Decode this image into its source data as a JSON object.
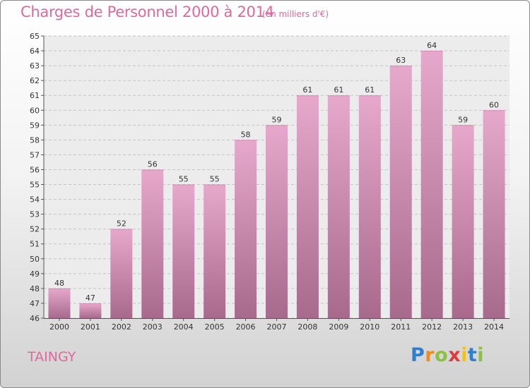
{
  "header": {
    "title": "Charges de Personnel 2000 à 2014",
    "subtitle": "(en milliers d'€)"
  },
  "commune": "TAINGY",
  "logo": {
    "text": "Proxiti",
    "letters": [
      {
        "char": "P",
        "color": "#2f7fd0"
      },
      {
        "char": "r",
        "color": "#f08a1e"
      },
      {
        "char": "o",
        "color": "#8cc13f"
      },
      {
        "char": "x",
        "color": "#e03a3a"
      },
      {
        "char": "i",
        "color": "#f2c21b"
      },
      {
        "char": "t",
        "color": "#2f7fd0"
      },
      {
        "char": "i",
        "color": "#8cc13f"
      }
    ]
  },
  "colors": {
    "bar_top": "#e6a8cb",
    "bar_bottom": "#a86a8c",
    "text": "#e0689e"
  },
  "chart_data": {
    "type": "bar",
    "title": "Charges de Personnel 2000 à 2014",
    "subtitle": "(en milliers d'€)",
    "categories": [
      "2000",
      "2001",
      "2002",
      "2003",
      "2004",
      "2005",
      "2006",
      "2007",
      "2008",
      "2009",
      "2010",
      "2011",
      "2012",
      "2013",
      "2014"
    ],
    "values": [
      48,
      47,
      52,
      56,
      55,
      55,
      58,
      59,
      61,
      61,
      61,
      63,
      64,
      59,
      60
    ],
    "ylim": [
      46,
      65
    ],
    "yticks": [
      46,
      47,
      48,
      49,
      50,
      51,
      52,
      53,
      54,
      55,
      56,
      57,
      58,
      59,
      60,
      61,
      62,
      63,
      64,
      65
    ],
    "grid": true,
    "data_labels": true,
    "xlabel": "",
    "ylabel": ""
  }
}
